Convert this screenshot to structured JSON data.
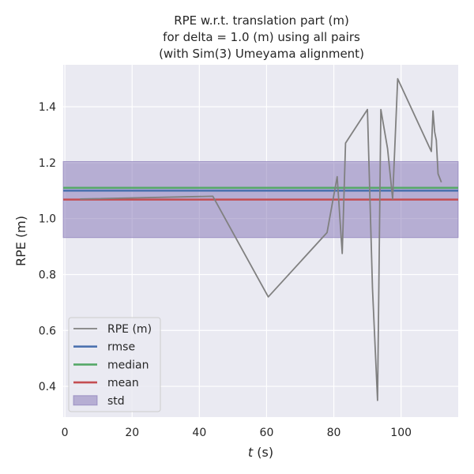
{
  "chart_data": {
    "type": "line",
    "title_lines": [
      "RPE w.r.t. translation part (m)",
      "for delta = 1.0 (m) using all pairs",
      "(with Sim(3) Umeyama alignment)"
    ],
    "xlabel_italic": "t",
    "xlabel_rest": " (s)",
    "ylabel": "RPE (m)",
    "xlim": [
      -0.5,
      117
    ],
    "ylim": [
      0.29,
      1.55
    ],
    "xticks": [
      0,
      20,
      40,
      60,
      80,
      100
    ],
    "yticks": [
      0.4,
      0.6,
      0.8,
      1.0,
      1.2,
      1.4
    ],
    "ytick_labels": [
      "0.4",
      "0.6",
      "0.8",
      "1.0",
      "1.2",
      "1.4"
    ],
    "grid": true,
    "legend_position": "lower-left",
    "series": [
      {
        "name": "RPE (m)",
        "color": "#808080",
        "x": [
          4.5,
          44,
          60.5,
          78,
          81,
          82.5,
          83.5,
          90,
          91.5,
          93,
          94,
          96,
          97.5,
          99,
          109,
          109.5,
          110,
          110.5,
          111,
          112
        ],
        "y": [
          1.07,
          1.08,
          0.72,
          0.95,
          1.15,
          0.875,
          1.27,
          1.39,
          0.75,
          0.35,
          1.39,
          1.25,
          1.07,
          1.5,
          1.24,
          1.385,
          1.31,
          1.28,
          1.16,
          1.13
        ]
      }
    ],
    "stats": {
      "rmse": {
        "name": "rmse",
        "value": 1.1,
        "color": "#4c72b0"
      },
      "median": {
        "name": "median",
        "value": 1.11,
        "color": "#55a868"
      },
      "mean": {
        "name": "mean",
        "value": 1.068,
        "color": "#c44e52"
      },
      "std": {
        "name": "std",
        "lower": 0.932,
        "upper": 1.204,
        "color": "#8172b3"
      }
    },
    "colors": {
      "plot_background": "#eaeaf2",
      "grid": "#ffffff",
      "text": "#262626"
    }
  }
}
